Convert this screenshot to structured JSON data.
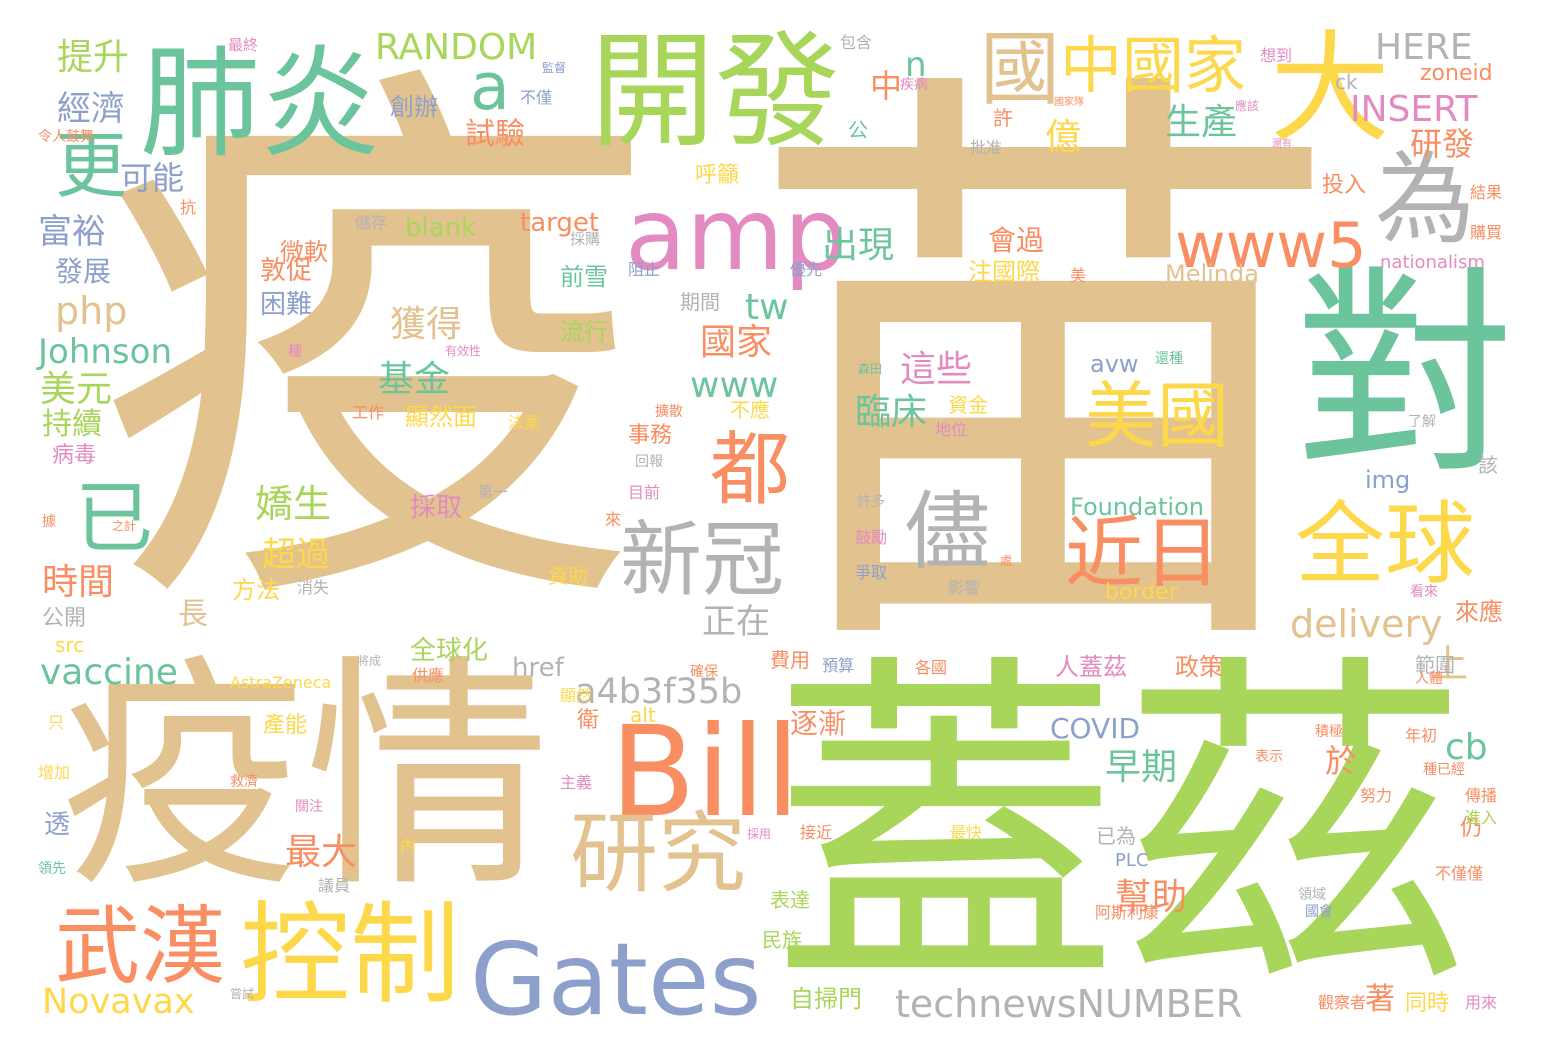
{
  "palette": {
    "tan": "#e2c28f",
    "green": "#a8d65a",
    "teal": "#6cc49c",
    "orange": "#f98e62",
    "yellow": "#fdd84a",
    "blue": "#8da0cb",
    "pink": "#e38bc1",
    "gray": "#b3b3b3"
  },
  "words": [
    {
      "text": "疫"
    },
    {
      "text": "苗"
    },
    {
      "text": "蓋茲"
    },
    {
      "text": "疫情"
    },
    {
      "text": "開發"
    },
    {
      "text": "肺炎"
    },
    {
      "text": "對"
    },
    {
      "text": "Gates"
    },
    {
      "text": "Bill"
    },
    {
      "text": "控制"
    },
    {
      "text": "amp"
    },
    {
      "text": "大"
    },
    {
      "text": "全球"
    },
    {
      "text": "研究"
    },
    {
      "text": "武漢"
    },
    {
      "text": "新冠"
    },
    {
      "text": "都"
    },
    {
      "text": "儘"
    },
    {
      "text": "近日"
    },
    {
      "text": "美國"
    },
    {
      "text": "www5"
    },
    {
      "text": "為"
    },
    {
      "text": "國"
    },
    {
      "text": "中國家"
    },
    {
      "text": "更"
    },
    {
      "text": "已"
    },
    {
      "text": "a"
    },
    {
      "text": "technewsNUMBER"
    },
    {
      "text": "Novavax"
    },
    {
      "text": "a4b3f35b"
    },
    {
      "text": "delivery"
    },
    {
      "text": "RANDOM"
    },
    {
      "text": "HERE"
    },
    {
      "text": "INSERT"
    },
    {
      "text": "Johnson"
    },
    {
      "text": "vaccine"
    },
    {
      "text": "COVID"
    },
    {
      "text": "Foundation"
    },
    {
      "text": "Melinda"
    },
    {
      "text": "AstraZeneca"
    },
    {
      "text": "nationalism"
    },
    {
      "text": "zoneid"
    },
    {
      "text": "border"
    },
    {
      "text": "target"
    },
    {
      "text": "blank"
    },
    {
      "text": "php"
    },
    {
      "text": "www"
    },
    {
      "text": "tw"
    },
    {
      "text": "cb"
    },
    {
      "text": "img"
    },
    {
      "text": "avw"
    },
    {
      "text": "href"
    },
    {
      "text": "alt"
    },
    {
      "text": "src"
    },
    {
      "text": "PLC"
    },
    {
      "text": "ck"
    },
    {
      "text": "n"
    },
    {
      "text": "提升"
    },
    {
      "text": "經濟"
    },
    {
      "text": "可能"
    },
    {
      "text": "富裕"
    },
    {
      "text": "發展"
    },
    {
      "text": "美元"
    },
    {
      "text": "持續"
    },
    {
      "text": "病毒"
    },
    {
      "text": "時間"
    },
    {
      "text": "公開"
    },
    {
      "text": "長"
    },
    {
      "text": "透"
    },
    {
      "text": "領先"
    },
    {
      "text": "增加"
    },
    {
      "text": "只"
    },
    {
      "text": "令人鼓舞"
    },
    {
      "text": "最終"
    },
    {
      "text": "儲存"
    },
    {
      "text": "微軟"
    },
    {
      "text": "敦促"
    },
    {
      "text": "困難"
    },
    {
      "text": "獲得"
    },
    {
      "text": "基金"
    },
    {
      "text": "嬌生"
    },
    {
      "text": "超過"
    },
    {
      "text": "方法"
    },
    {
      "text": "全球化"
    },
    {
      "text": "試驗"
    },
    {
      "text": "創辦"
    },
    {
      "text": "中"
    },
    {
      "text": "億"
    },
    {
      "text": "生產"
    },
    {
      "text": "研發"
    },
    {
      "text": "呼籲"
    },
    {
      "text": "出現"
    },
    {
      "text": "會過"
    },
    {
      "text": "注國際"
    },
    {
      "text": "國家"
    },
    {
      "text": "這些"
    },
    {
      "text": "臨床"
    },
    {
      "text": "資金"
    },
    {
      "text": "顯然面"
    },
    {
      "text": "不應"
    },
    {
      "text": "事務"
    },
    {
      "text": "前雪"
    },
    {
      "text": "流行"
    },
    {
      "text": "採取"
    },
    {
      "text": "正在"
    },
    {
      "text": "上"
    },
    {
      "text": "來應"
    },
    {
      "text": "範圍"
    },
    {
      "text": "人蓋茲"
    },
    {
      "text": "政策"
    },
    {
      "text": "早期"
    },
    {
      "text": "於"
    },
    {
      "text": "幫助"
    },
    {
      "text": "逐漸"
    },
    {
      "text": "費用"
    },
    {
      "text": "最大"
    },
    {
      "text": "衛"
    },
    {
      "text": "產能"
    },
    {
      "text": "自掃門"
    },
    {
      "text": "著"
    },
    {
      "text": "同時"
    },
    {
      "text": "投入"
    },
    {
      "text": "許"
    },
    {
      "text": "批准"
    },
    {
      "text": "期間"
    },
    {
      "text": "資助"
    },
    {
      "text": "消失"
    },
    {
      "text": "仍"
    },
    {
      "text": "已為"
    },
    {
      "text": "努力"
    },
    {
      "text": "年初"
    },
    {
      "text": "傳播"
    },
    {
      "text": "進入"
    },
    {
      "text": "不僅僅"
    },
    {
      "text": "結果"
    },
    {
      "text": "購買"
    },
    {
      "text": "該"
    },
    {
      "text": "了解"
    },
    {
      "text": "阿斯利康"
    },
    {
      "text": "國會"
    },
    {
      "text": "領域"
    },
    {
      "text": "用來"
    },
    {
      "text": "觀察者"
    },
    {
      "text": "民族"
    },
    {
      "text": "表達"
    },
    {
      "text": "接近"
    },
    {
      "text": "最快"
    },
    {
      "text": "鼓勵"
    },
    {
      "text": "爭取"
    },
    {
      "text": "影響"
    },
    {
      "text": "許多"
    },
    {
      "text": "目前"
    },
    {
      "text": "回報"
    },
    {
      "text": "第一"
    },
    {
      "text": "地位"
    },
    {
      "text": "優先"
    },
    {
      "text": "阻止"
    },
    {
      "text": "採購"
    },
    {
      "text": "工作"
    },
    {
      "text": "法案"
    },
    {
      "text": "有效性"
    },
    {
      "text": "種"
    },
    {
      "text": "抗"
    },
    {
      "text": "據"
    },
    {
      "text": "之計"
    },
    {
      "text": "包含"
    },
    {
      "text": "想到"
    },
    {
      "text": "國家隊"
    },
    {
      "text": "應該"
    },
    {
      "text": "還有"
    },
    {
      "text": "公"
    },
    {
      "text": "不僅"
    },
    {
      "text": "疾病"
    },
    {
      "text": "監督"
    },
    {
      "text": "來"
    },
    {
      "text": "處"
    },
    {
      "text": "擴散"
    },
    {
      "text": "還種"
    },
    {
      "text": "美"
    },
    {
      "text": "將成"
    },
    {
      "text": "供應"
    },
    {
      "text": "確保"
    },
    {
      "text": "預算"
    },
    {
      "text": "各國"
    },
    {
      "text": "人體"
    },
    {
      "text": "顯然"
    },
    {
      "text": "主義"
    },
    {
      "text": "救濟"
    },
    {
      "text": "關注"
    },
    {
      "text": "內"
    },
    {
      "text": "議員"
    },
    {
      "text": "嘗試"
    },
    {
      "text": "表示"
    },
    {
      "text": "積極"
    },
    {
      "text": "種已經"
    },
    {
      "text": "看來"
    },
    {
      "text": "採用"
    },
    {
      "text": "森田"
    }
  ]
}
